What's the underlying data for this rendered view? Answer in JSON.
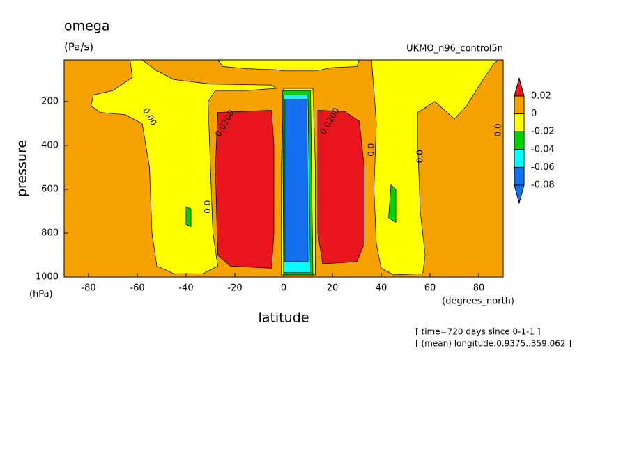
{
  "chart_data": {
    "type": "contour",
    "title": "omega",
    "subtitle": "(Pa/s)",
    "dataset": "UKMO_n96_control5n",
    "x_label": "latitude",
    "x_units": "(degrees_north)",
    "y_label": "pressure",
    "y_units": "(hPa)",
    "notes": [
      "[ time=720 days since 0-1-1 ]",
      "[ (mean) longitude:0.9375..359.062 ]"
    ],
    "xlim": [
      -90,
      90
    ],
    "xticks": [
      -80,
      -60,
      -40,
      -20,
      0,
      20,
      40,
      60,
      80
    ],
    "ylim": [
      1000,
      10
    ],
    "yticks": [
      200,
      400,
      600,
      800,
      1000
    ],
    "background_color": "#f5a100",
    "colorbar": {
      "bounds": [
        0.02,
        0,
        -0.02,
        -0.04,
        -0.06,
        -0.08
      ],
      "colors": [
        "#e8161c",
        "#f5a100",
        "#ffff00",
        "#00d400",
        "#00ffff",
        "#1470ee",
        "#1470ee"
      ]
    },
    "regions": [
      {
        "color": "#ffff00",
        "lat": [
          -58,
          -52,
          -45,
          -30,
          -5,
          -3,
          -15,
          -28,
          -31,
          -30,
          -29,
          -27,
          -33,
          -45,
          -52,
          -54,
          -55,
          -58,
          -65,
          -75,
          -79,
          -78,
          -70,
          -62,
          -63
        ],
        "p": [
          10,
          60,
          100,
          120,
          125,
          140,
          150,
          150,
          200,
          500,
          800,
          950,
          985,
          985,
          950,
          800,
          500,
          300,
          260,
          250,
          220,
          170,
          150,
          90,
          10
        ]
      },
      {
        "color": "#ffff00",
        "lat": [
          -27,
          -25,
          -15,
          -3,
          0,
          13,
          20,
          30,
          31
        ],
        "p": [
          10,
          40,
          50,
          55,
          60,
          60,
          45,
          40,
          10
        ]
      },
      {
        "color": "#ffff00",
        "lat": [
          36,
          37,
          38,
          37,
          38,
          40,
          45,
          57,
          58,
          56,
          55,
          55,
          62,
          70,
          75,
          80,
          86,
          88
        ],
        "p": [
          10,
          150,
          300,
          600,
          850,
          960,
          990,
          985,
          900,
          700,
          400,
          250,
          200,
          280,
          220,
          130,
          30,
          10
        ]
      },
      {
        "color": "#e8161c",
        "lat": [
          -27,
          -5,
          -4,
          -4,
          -5,
          -22,
          -27,
          -28
        ],
        "p": [
          250,
          240,
          400,
          800,
          960,
          950,
          900,
          500
        ]
      },
      {
        "color": "#e8161c",
        "lat": [
          14,
          25,
          31,
          33,
          33,
          30,
          16,
          14,
          14
        ],
        "p": [
          240,
          245,
          290,
          500,
          850,
          930,
          940,
          800,
          400
        ]
      },
      {
        "color": "#ffff00",
        "lat": [
          0,
          12,
          13,
          13,
          -1,
          -1
        ],
        "p": [
          140,
          140,
          500,
          990,
          990,
          500
        ]
      },
      {
        "color": "#00d400",
        "lat": [
          -0.5,
          11,
          12,
          0
        ],
        "p": [
          150,
          150,
          990,
          990
        ]
      },
      {
        "color": "#00ffff",
        "lat": [
          0,
          10,
          11,
          0
        ],
        "p": [
          170,
          170,
          980,
          980
        ]
      },
      {
        "color": "#1470ee",
        "lat": [
          0.5,
          9.5,
          10,
          0.5
        ],
        "p": [
          190,
          190,
          930,
          930
        ]
      },
      {
        "color": "#00d400",
        "lat": [
          -40,
          -38,
          -38,
          -40
        ],
        "p": [
          680,
          690,
          770,
          760
        ]
      },
      {
        "color": "#00d400",
        "lat": [
          44,
          46,
          46,
          43
        ],
        "p": [
          580,
          600,
          750,
          730
        ]
      }
    ],
    "contour_labels": [
      {
        "text": "0.00",
        "lat": -55,
        "p": 270
      },
      {
        "text": "0.0200",
        "lat": -24,
        "p": 300
      },
      {
        "text": "0.0200",
        "lat": 19,
        "p": 290
      },
      {
        "text": "0.0",
        "lat": -31,
        "p": 680
      },
      {
        "text": "0.0",
        "lat": 36,
        "p": 420
      },
      {
        "text": "0.0",
        "lat": 56,
        "p": 450
      },
      {
        "text": "0.0",
        "lat": 88,
        "p": 330
      }
    ]
  }
}
